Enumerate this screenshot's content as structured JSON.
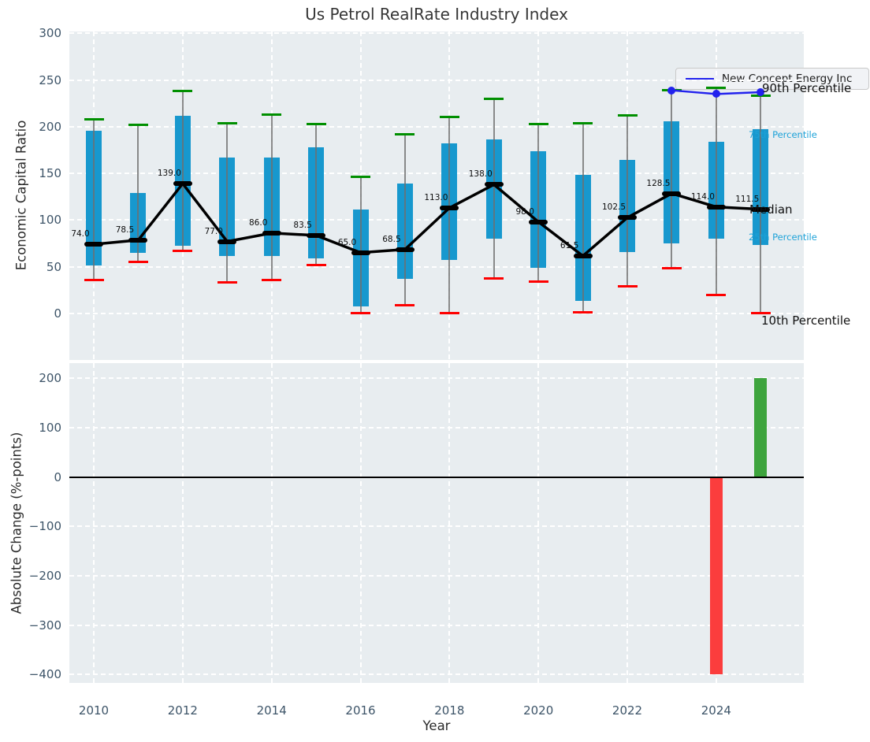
{
  "title": "Us Petrol RealRate Industry Index",
  "legend": {
    "label": "New Concept Energy Inc"
  },
  "colors": {
    "axes_background": "#e8edf0",
    "box": "#1798ce",
    "p90_cap": "#008f00",
    "p10_cap": "#fe0000",
    "median": "#000000",
    "company_line": "#2222ee",
    "change_negative": "#fb3d3d",
    "change_positive": "#3da43d",
    "tick_text": "#3d5468",
    "percentile_label_blue": "#1da2d8"
  },
  "chart_data": [
    {
      "type": "box-percentile-timeseries",
      "title": "Us Petrol RealRate Industry Index",
      "xlabel": "Year",
      "ylabel": "Economic Capital Ratio",
      "grid": true,
      "legend_position": "upper right",
      "ylim": [
        -50,
        302
      ],
      "yticks": [
        300,
        250,
        200,
        150,
        100,
        50,
        0
      ],
      "xlim": [
        2009.45,
        2025.97
      ],
      "xticks": [
        2010,
        2012,
        2014,
        2016,
        2018,
        2020,
        2022,
        2024
      ],
      "years": [
        2010,
        2011,
        2012,
        2013,
        2014,
        2015,
        2016,
        2017,
        2018,
        2019,
        2020,
        2021,
        2022,
        2023,
        2024,
        2025
      ],
      "p90": [
        208,
        202,
        238,
        204,
        213,
        203,
        146,
        192,
        210,
        230,
        203,
        204,
        212,
        239,
        242,
        233
      ],
      "q75": [
        196,
        129,
        212,
        167,
        167,
        178,
        111,
        139,
        182,
        186,
        174,
        148,
        164,
        206,
        184,
        197
      ],
      "median": [
        74,
        78.5,
        139,
        77,
        86,
        83.5,
        65,
        68.5,
        113,
        138,
        98,
        61.5,
        102.5,
        128.5,
        114,
        111.5
      ],
      "q25": [
        51,
        65,
        72,
        61,
        61,
        59,
        7,
        37,
        57,
        80,
        49,
        13,
        66,
        75,
        80,
        73
      ],
      "p10": [
        36,
        55,
        67,
        33,
        36,
        52,
        0,
        9,
        0,
        37,
        34,
        1,
        29,
        48,
        20,
        0
      ],
      "median_labels": [
        "74.0",
        "78.5",
        "139.0",
        "77.0",
        "86.0",
        "83.5",
        "65.0",
        "68.5",
        "113.0",
        "138.0",
        "98.0",
        "61.5",
        "102.5",
        "128.5",
        "114.0",
        "111.5"
      ],
      "company_series": {
        "name": "New Concept Energy Inc",
        "x": [
          2023,
          2024,
          2025
        ],
        "y": [
          239,
          235,
          237
        ],
        "color": "#2222ee"
      },
      "annotations": [
        {
          "text": "90th Percentile",
          "y": 241,
          "color": "#111111",
          "size": "large"
        },
        {
          "text": "75th Percentile",
          "y": 191,
          "color": "#1da2d8",
          "size": "small"
        },
        {
          "text": "Median",
          "y": 111.5,
          "color": "#111111",
          "size": "large"
        },
        {
          "text": "25th Percentile",
          "y": 81.5,
          "color": "#1da2d8",
          "size": "small"
        },
        {
          "text": "10th Percentile",
          "y": -8,
          "color": "#111111",
          "size": "large"
        }
      ]
    },
    {
      "type": "bar",
      "ylabel": "Absolute Change (%-points)",
      "ylim": [
        -417,
        231
      ],
      "yticks": [
        200,
        100,
        0,
        -100,
        -200,
        -300,
        -400
      ],
      "bars": [
        {
          "year": 2024,
          "value": -400,
          "color": "#fb3d3d"
        },
        {
          "year": 2025,
          "value": 200,
          "color": "#3da43d"
        }
      ]
    }
  ]
}
